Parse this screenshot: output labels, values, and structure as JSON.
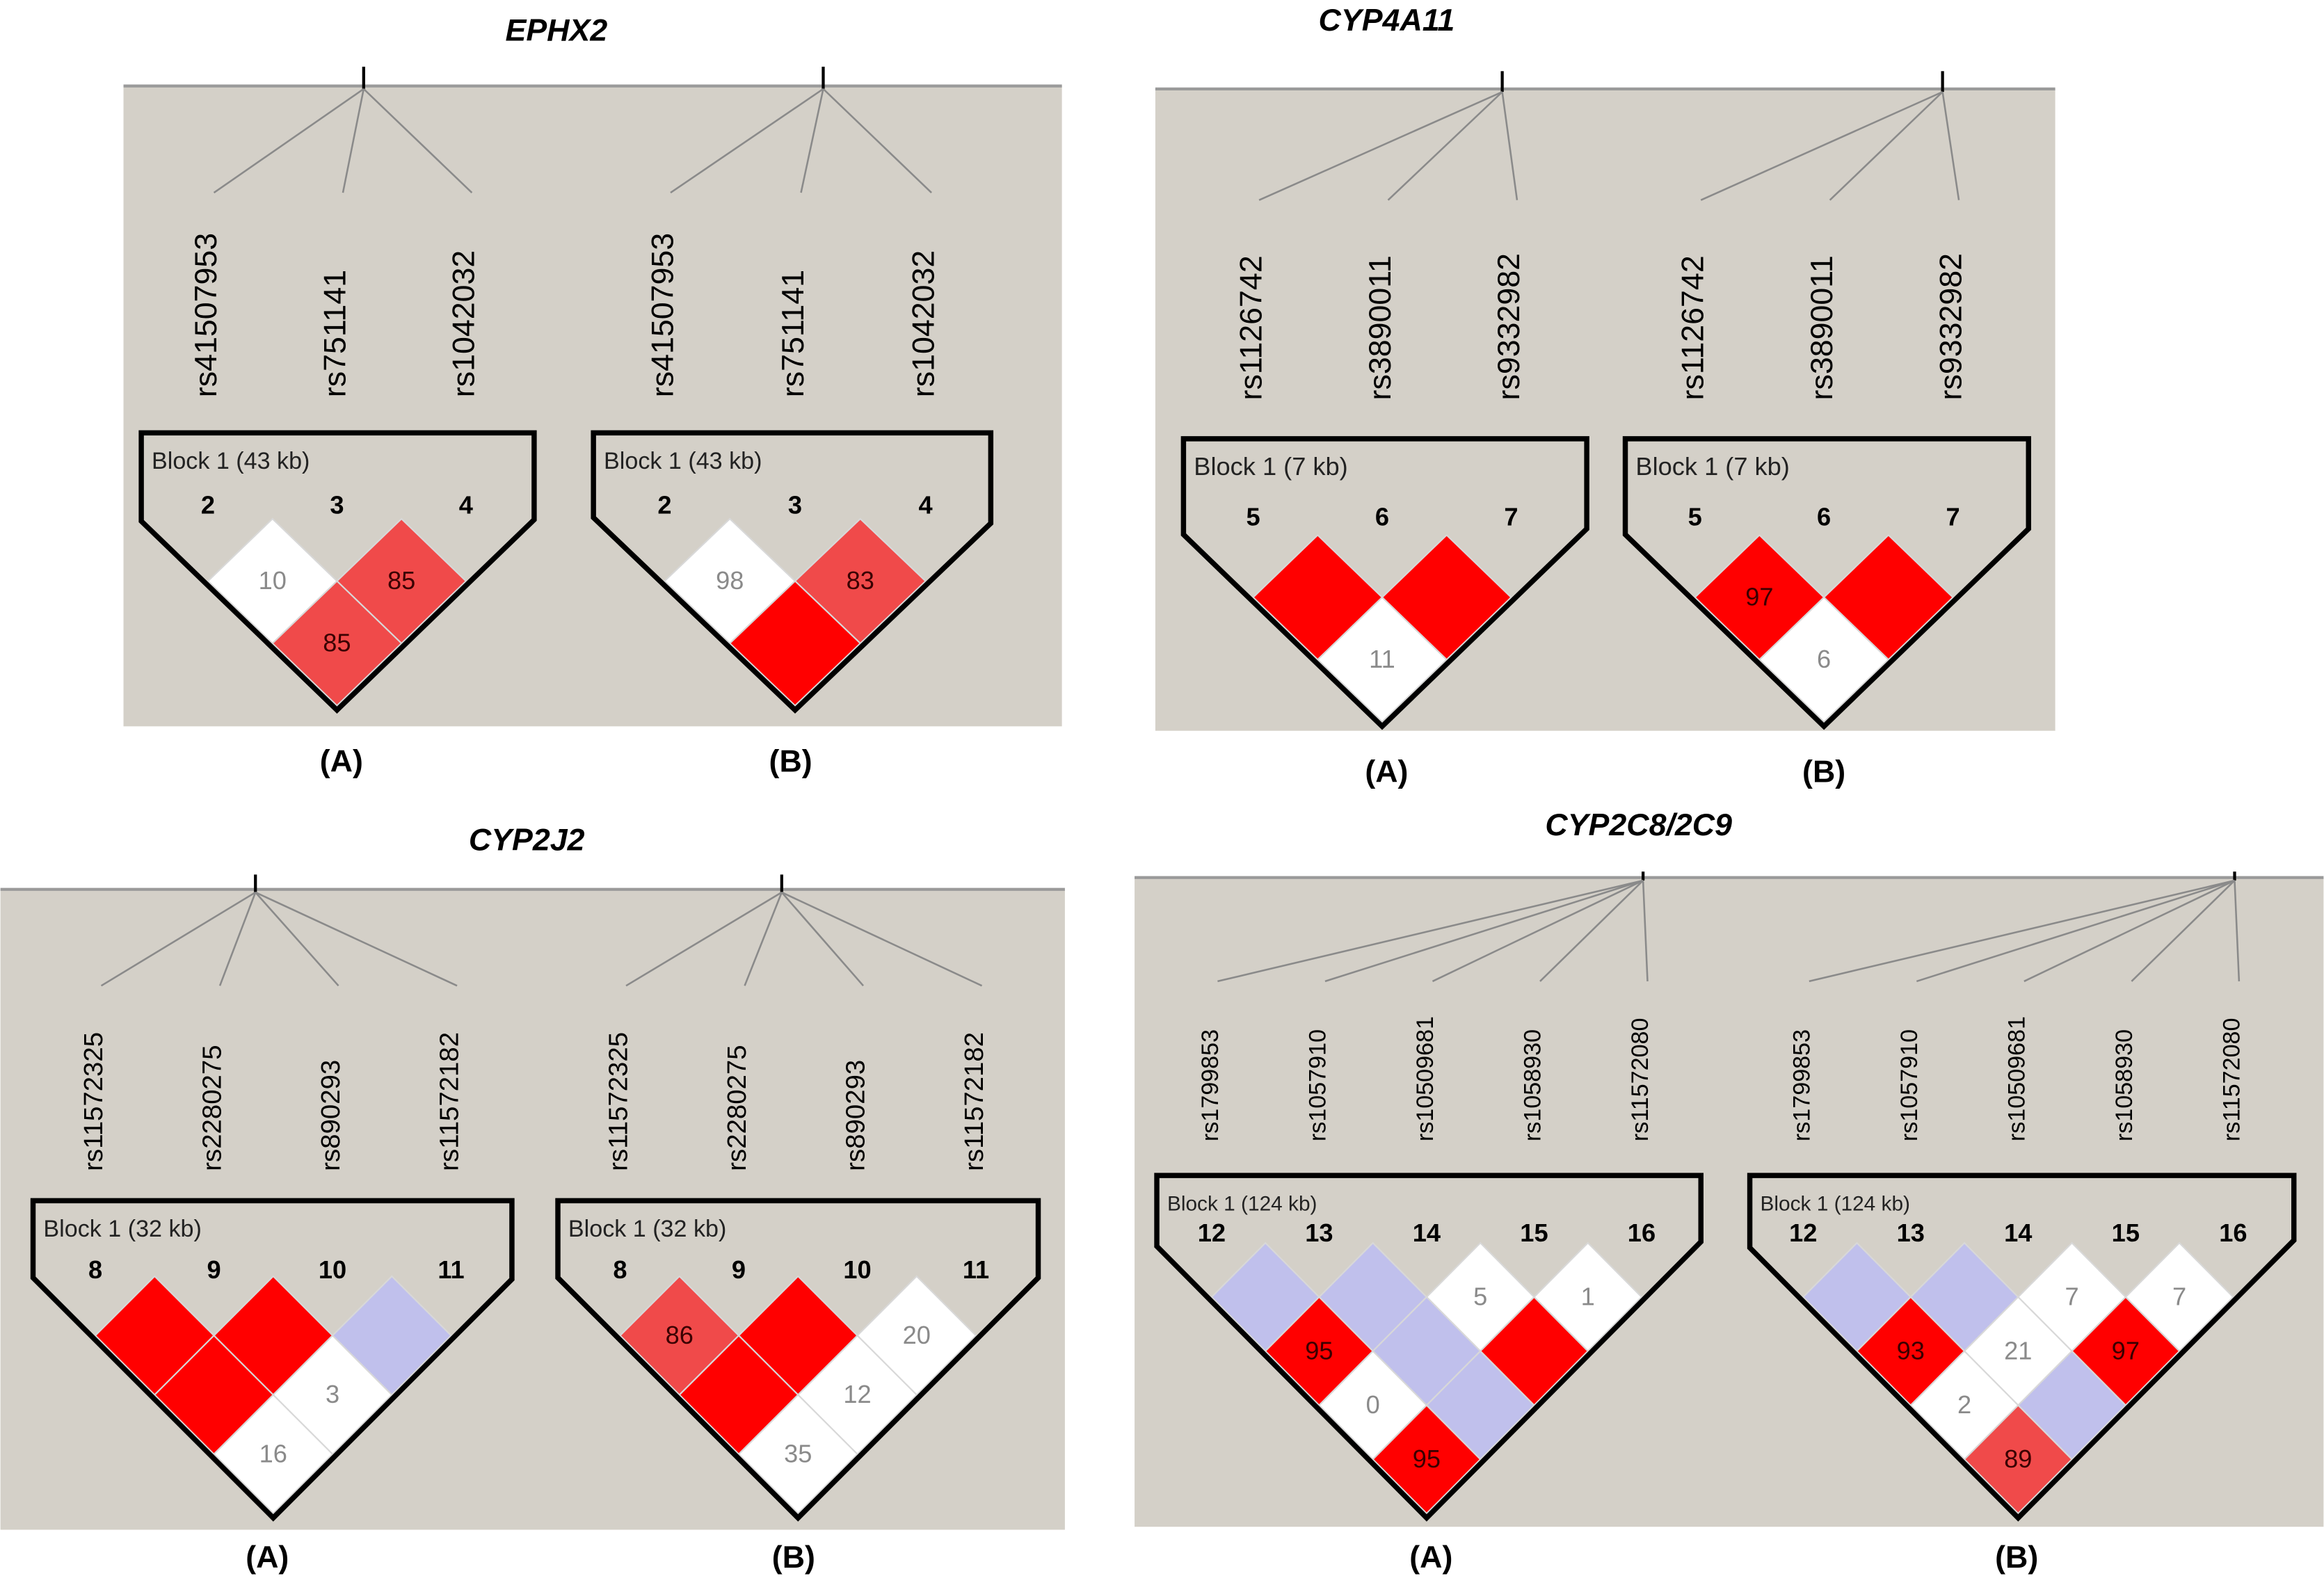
{
  "figures": [
    {
      "title": "EPHX2",
      "plots": [
        {
          "label": "(A)",
          "block": "Block 1 (43 kb)",
          "snps": [
            "rs41507953",
            "rs751141",
            "rs1042032"
          ],
          "markers": [
            "2",
            "3",
            "4"
          ],
          "cells": [
            [
              {
                "value": 10,
                "color": "#ffffff"
              },
              {
                "value": 85,
                "color": "#f04a4a"
              }
            ],
            [
              {
                "value": 85,
                "color": "#f04a4a"
              }
            ]
          ]
        },
        {
          "label": "(B)",
          "block": "Block 1 (43 kb)",
          "snps": [
            "rs41507953",
            "rs751141",
            "rs1042032"
          ],
          "markers": [
            "2",
            "3",
            "4"
          ],
          "cells": [
            [
              {
                "value": 98,
                "color": "#ffffff"
              },
              {
                "value": 83,
                "color": "#f04a4a"
              }
            ],
            [
              {
                "value": null,
                "color": "#ff0000"
              }
            ]
          ]
        }
      ]
    },
    {
      "title": "CYP4A11",
      "plots": [
        {
          "label": "(A)",
          "block": "Block 1 (7 kb)",
          "snps": [
            "rs1126742",
            "rs3890011",
            "rs9332982"
          ],
          "markers": [
            "5",
            "6",
            "7"
          ],
          "cells": [
            [
              {
                "value": null,
                "color": "#ff0000"
              },
              {
                "value": null,
                "color": "#ff0000"
              }
            ],
            [
              {
                "value": 11,
                "color": "#ffffff"
              }
            ]
          ]
        },
        {
          "label": "(B)",
          "block": "Block 1 (7 kb)",
          "snps": [
            "rs1126742",
            "rs3890011",
            "rs9332982"
          ],
          "markers": [
            "5",
            "6",
            "7"
          ],
          "cells": [
            [
              {
                "value": 97,
                "color": "#ff0000"
              },
              {
                "value": null,
                "color": "#ff0000"
              }
            ],
            [
              {
                "value": 6,
                "color": "#ffffff"
              }
            ]
          ]
        }
      ]
    },
    {
      "title": "CYP2J2",
      "plots": [
        {
          "label": "(A)",
          "block": "Block 1 (32 kb)",
          "snps": [
            "rs11572325",
            "rs2280275",
            "rs890293",
            "rs11572182"
          ],
          "markers": [
            "8",
            "9",
            "10",
            "11"
          ],
          "cells": [
            [
              {
                "value": null,
                "color": "#ff0000"
              },
              {
                "value": null,
                "color": "#ff0000"
              },
              {
                "value": null,
                "color": "#c0c0ec"
              }
            ],
            [
              {
                "value": null,
                "color": "#ff0000"
              },
              {
                "value": 3,
                "color": "#ffffff"
              }
            ],
            [
              {
                "value": 16,
                "color": "#ffffff"
              }
            ]
          ]
        },
        {
          "label": "(B)",
          "block": "Block 1 (32 kb)",
          "snps": [
            "rs11572325",
            "rs2280275",
            "rs890293",
            "rs11572182"
          ],
          "markers": [
            "8",
            "9",
            "10",
            "11"
          ],
          "cells": [
            [
              {
                "value": 86,
                "color": "#f04a4a"
              },
              {
                "value": null,
                "color": "#ff0000"
              },
              {
                "value": 20,
                "color": "#ffffff"
              }
            ],
            [
              {
                "value": null,
                "color": "#ff0000"
              },
              {
                "value": 12,
                "color": "#ffffff"
              }
            ],
            [
              {
                "value": 35,
                "color": "#ffffff"
              }
            ]
          ]
        }
      ]
    },
    {
      "title": "CYP2C8/2C9",
      "plots": [
        {
          "label": "(A)",
          "block": "Block 1 (124 kb)",
          "snps": [
            "rs1799853",
            "rs1057910",
            "rs10509681",
            "rs1058930",
            "rs11572080"
          ],
          "markers": [
            "12",
            "13",
            "14",
            "15",
            "16"
          ],
          "cells": [
            [
              {
                "value": null,
                "color": "#c0c0ec"
              },
              {
                "value": null,
                "color": "#c0c0ec"
              },
              {
                "value": 5,
                "color": "#ffffff"
              },
              {
                "value": 1,
                "color": "#ffffff"
              }
            ],
            [
              {
                "value": 95,
                "color": "#ff0000"
              },
              {
                "value": null,
                "color": "#c0c0ec"
              },
              {
                "value": null,
                "color": "#ff0000"
              }
            ],
            [
              {
                "value": 0,
                "color": "#ffffff"
              },
              {
                "value": null,
                "color": "#c0c0ec"
              }
            ],
            [
              {
                "value": 95,
                "color": "#ff0000"
              }
            ]
          ]
        },
        {
          "label": "(B)",
          "block": "Block 1 (124 kb)",
          "snps": [
            "rs1799853",
            "rs1057910",
            "rs10509681",
            "rs1058930",
            "rs11572080"
          ],
          "markers": [
            "12",
            "13",
            "14",
            "15",
            "16"
          ],
          "cells": [
            [
              {
                "value": null,
                "color": "#c0c0ec"
              },
              {
                "value": null,
                "color": "#c0c0ec"
              },
              {
                "value": 7,
                "color": "#ffffff"
              },
              {
                "value": 7,
                "color": "#ffffff"
              }
            ],
            [
              {
                "value": 93,
                "color": "#ff0000"
              },
              {
                "value": 21,
                "color": "#ffffff"
              },
              {
                "value": 97,
                "color": "#ff0000"
              }
            ],
            [
              {
                "value": 2,
                "color": "#ffffff"
              },
              {
                "value": null,
                "color": "#c0c0ec"
              }
            ],
            [
              {
                "value": 89,
                "color": "#f04a4a"
              }
            ]
          ]
        }
      ]
    }
  ]
}
